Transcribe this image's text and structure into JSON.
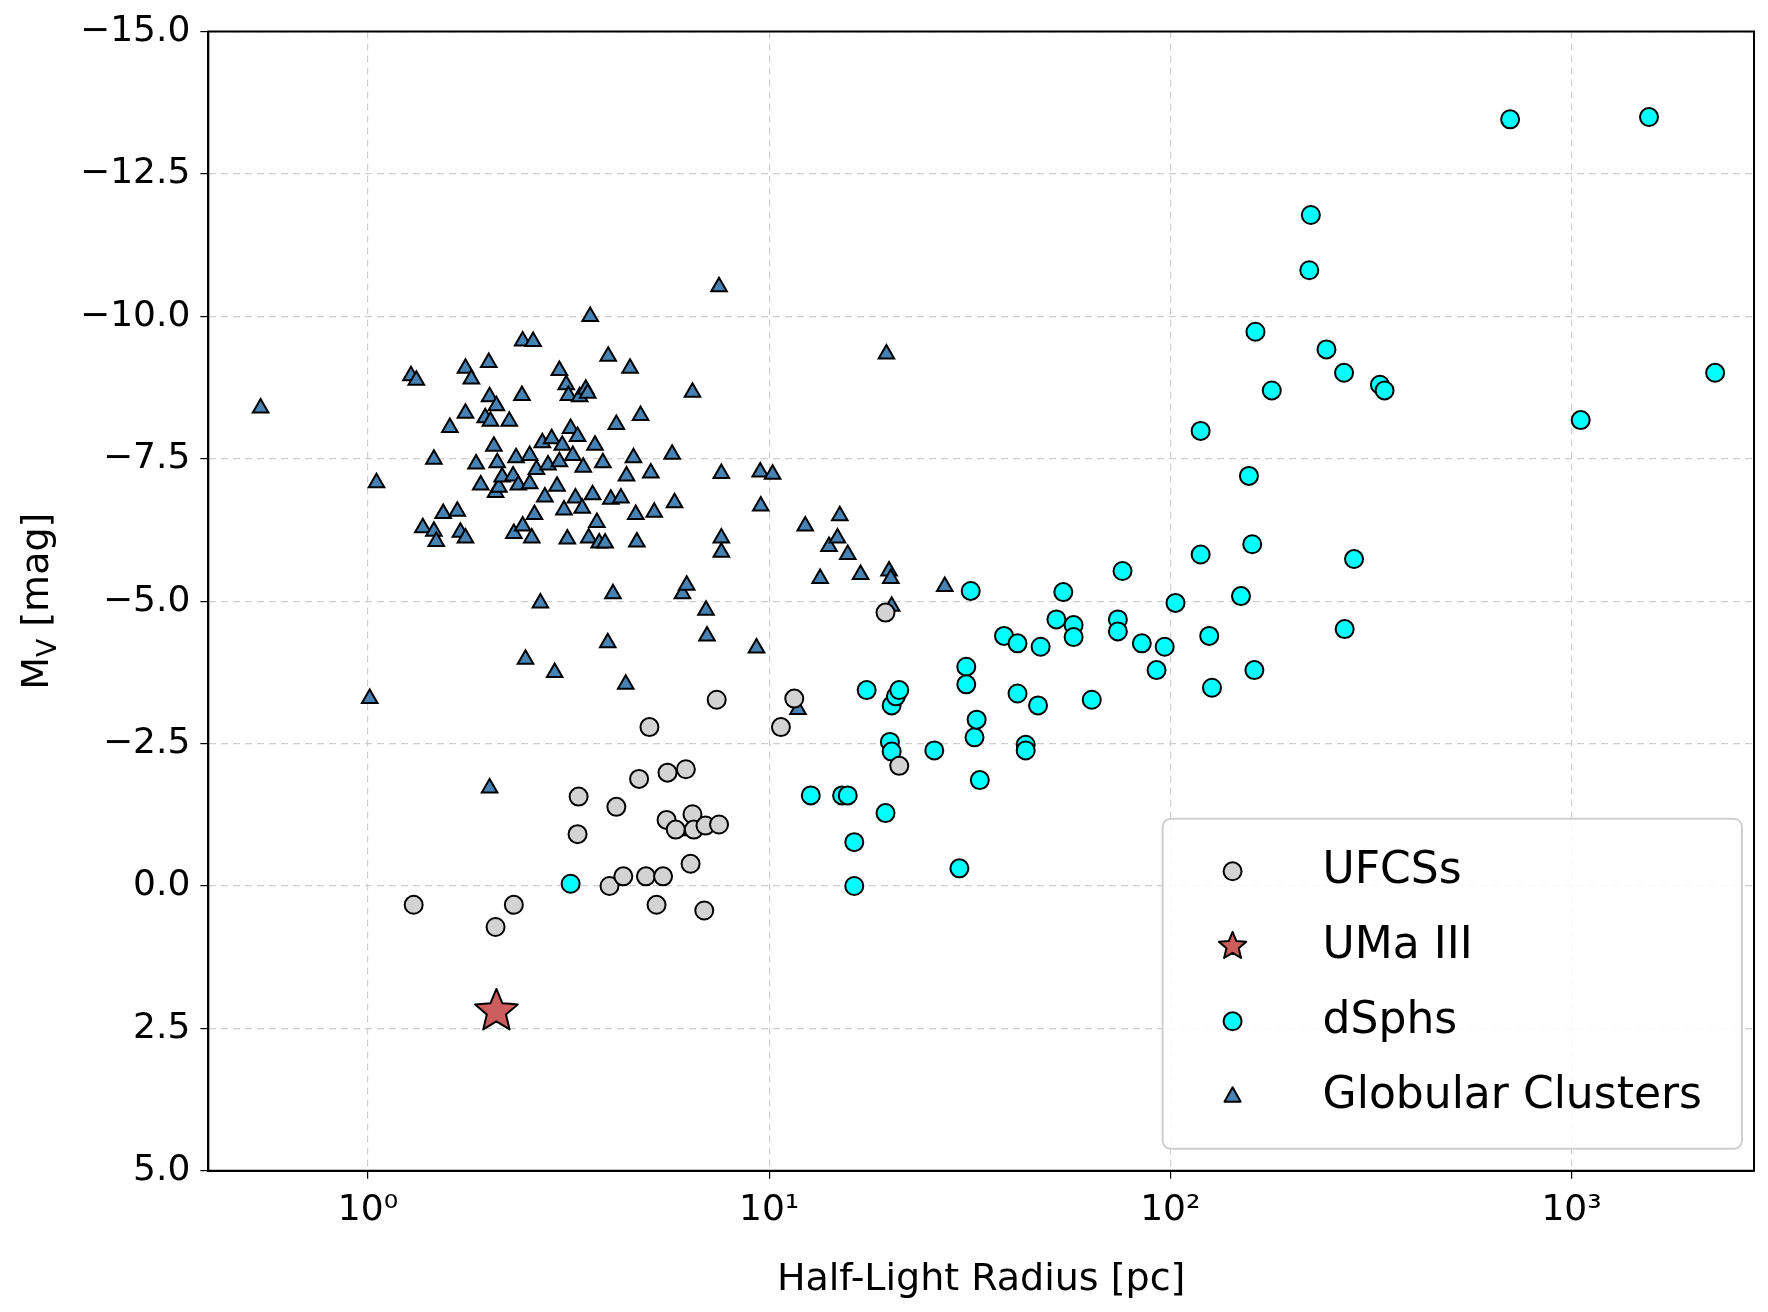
{
  "chart_data": {
    "type": "scatter",
    "xlabel": "Half-Light Radius [pc]",
    "ylabel": "M$_{V}$ [mag]",
    "log": "x",
    "grid": true,
    "legend": "bottom right",
    "xlim": [
      0.4,
      2850
    ],
    "xticks": [
      {
        "value": 1,
        "label": "10⁰"
      },
      {
        "value": 10,
        "label": "10¹"
      },
      {
        "value": 100,
        "label": "10²"
      },
      {
        "value": 1000,
        "label": "10³"
      }
    ],
    "ylim": [
      5,
      -15
    ],
    "yticks": [
      {
        "value": -15,
        "label": "−15.0"
      },
      {
        "value": -12.5,
        "label": "−12.5"
      },
      {
        "value": -10,
        "label": "−10.0"
      },
      {
        "value": -7.5,
        "label": "−7.5"
      },
      {
        "value": -5,
        "label": "−5.0"
      },
      {
        "value": -2.5,
        "label": "−2.5"
      },
      {
        "value": 0,
        "label": "0.0"
      },
      {
        "value": 2.5,
        "label": "2.5"
      },
      {
        "value": 5,
        "label": "5.0"
      }
    ],
    "series": [
      {
        "name": "UFCSs",
        "color": "#d3d3d3",
        "marker": "circle",
        "x": [
          1.3,
          2.08,
          2.31,
          3.35,
          3.33,
          4.16,
          4.0,
          4.33,
          4.74,
          5.03,
          4.93,
          5.24,
          5.44,
          5.58,
          5.55,
          5.85,
          6.2,
          6.37,
          6.44,
          6.49,
          6.89,
          6.94,
          7.5,
          7.4,
          10.7,
          11.55,
          19.5,
          21.1
        ],
        "values": [
          0.33,
          0.72,
          0.33,
          -1.57,
          -0.91,
          -1.39,
          0,
          -0.17,
          -1.88,
          -2.79,
          -0.17,
          0.33,
          -0.17,
          -1.99,
          -1.16,
          -0.99,
          -2.05,
          -0.39,
          -1.26,
          -0.99,
          0.43,
          -1.06,
          -1.08,
          -3.27,
          -2.79,
          -3.29,
          -4.8,
          -2.11
        ]
      },
      {
        "name": "UMa III",
        "color": "#cd5c5c",
        "marker": "star",
        "x": [
          2.09
        ],
        "values": [
          2.2
        ]
      },
      {
        "name": "dSphs",
        "color": "#00ffff",
        "marker": "circle",
        "x": [
          3.2,
          12.7,
          15.2,
          15.7,
          16.3,
          16.3,
          17.5,
          19.5,
          20.0,
          20.2,
          20.2,
          20.7,
          21.1,
          25.8,
          29.8,
          31.8,
          31.0,
          31.0,
          32.5,
          32.9,
          33.5,
          38.5,
          41.6,
          41.6,
          43.6,
          43.6,
          46.8,
          47.5,
          52.0,
          54.1,
          57.4,
          57.4,
          63.7,
          74.0,
          74.0,
          76.0,
          84.9,
          92.4,
          96.8,
          103,
          119,
          119,
          125,
          127,
          150,
          157,
          160,
          163,
          162,
          179,
          222,
          224,
          245,
          272,
          271,
          287,
          333,
          342,
          703,
          1054,
          1560,
          2280
        ],
        "values": [
          -0.04,
          -1.59,
          -1.59,
          -1.59,
          -0.77,
          0,
          -3.44,
          -1.28,
          -2.53,
          -2.36,
          -3.17,
          -3.33,
          -3.44,
          -2.38,
          -0.31,
          -5.18,
          -3.85,
          -3.54,
          -2.61,
          -2.92,
          -1.86,
          -4.39,
          -4.26,
          -3.38,
          -2.48,
          -2.38,
          -3.17,
          -4.2,
          -4.68,
          -5.16,
          -4.58,
          -4.37,
          -3.27,
          -4.68,
          -4.47,
          -5.53,
          -4.26,
          -3.79,
          -4.2,
          -4.97,
          -7.99,
          -5.82,
          -4.39,
          -3.48,
          -5.09,
          -7.2,
          -6.0,
          -9.73,
          -3.79,
          -8.7,
          -10.81,
          -11.78,
          -9.42,
          -4.51,
          -9.01,
          -5.74,
          -8.8,
          -8.7,
          -13.46,
          -8.18,
          -13.5,
          -9.01
        ]
      },
      {
        "name": "Globular Clusters",
        "color": "#4682b4",
        "marker": "triangle",
        "x": [
          0.54,
          1.01,
          1.05,
          1.28,
          1.32,
          1.37,
          1.46,
          1.46,
          1.48,
          1.54,
          1.6,
          1.67,
          1.7,
          1.75,
          1.75,
          1.75,
          1.81,
          1.86,
          1.91,
          1.96,
          2.0,
          2.01,
          2.01,
          2.02,
          2.06,
          2.08,
          2.09,
          2.1,
          2.12,
          2.16,
          2.25,
          2.3,
          2.31,
          2.34,
          2.37,
          2.42,
          2.43,
          2.43,
          2.47,
          2.53,
          2.53,
          2.56,
          2.58,
          2.6,
          2.63,
          2.69,
          2.72,
          2.76,
          2.81,
          2.87,
          2.92,
          2.96,
          3.0,
          3.0,
          3.05,
          3.08,
          3.12,
          3.14,
          3.16,
          3.2,
          3.24,
          3.29,
          3.33,
          3.37,
          3.42,
          3.44,
          3.49,
          3.53,
          3.55,
          3.58,
          3.63,
          3.68,
          3.72,
          3.77,
          3.85,
          3.9,
          3.96,
          3.97,
          4.03,
          4.08,
          4.16,
          4.27,
          4.39,
          4.41,
          4.5,
          4.59,
          4.65,
          4.68,
          4.78,
          5.07,
          5.17,
          5.73,
          5.81,
          6.08,
          6.23,
          6.44,
          6.96,
          7.0,
          7.5,
          7.6,
          7.6,
          7.6,
          9.3,
          9.5,
          9.53,
          10.2,
          12.3,
          13.4,
          14.1,
          14.8,
          15.0,
          15.7,
          16.9,
          19.6,
          19.9,
          20.2,
          20.1,
          27.4,
          11.8,
          6.4
        ],
        "values": [
          -8.39,
          -3.29,
          -7.08,
          -8.96,
          -8.88,
          -6.29,
          -7.49,
          -6.23,
          -6.05,
          -6.54,
          -8.05,
          -6.58,
          -6.21,
          -9.09,
          -6.11,
          -8.3,
          -8.9,
          -7.41,
          -7.04,
          -8.22,
          -9.19,
          -1.72,
          -8.59,
          -8.16,
          -7.72,
          -6.91,
          -8.43,
          -7.43,
          -7.0,
          -7.18,
          -8.16,
          -7.2,
          -6.19,
          -7.52,
          -7.04,
          -8.61,
          -9.57,
          -6.32,
          -3.98,
          -7.06,
          -7.56,
          -6.11,
          -9.56,
          -6.52,
          -7.31,
          -4.97,
          -7.78,
          -6.83,
          -7.39,
          -7.85,
          -3.75,
          -7.02,
          -9.05,
          -7.45,
          -7.74,
          -6.6,
          -8.8,
          -6.09,
          -8.61,
          -8.03,
          -7.56,
          -6.81,
          -7.89,
          -8.59,
          -6.63,
          -7.35,
          -8.72,
          -8.65,
          -6.11,
          -10.0,
          -6.87,
          -7.74,
          -6.38,
          -6.02,
          -7.43,
          -6.02,
          -4.27,
          -9.3,
          -6.79,
          -5.13,
          -8.1,
          -6.81,
          -3.54,
          -7.2,
          -9.09,
          -7.52,
          -6.52,
          -6.04,
          -8.26,
          -7.25,
          -6.56,
          -7.58,
          -6.73,
          -5.13,
          -5.28,
          -8.67,
          -4.84,
          -4.39,
          -10.52,
          -7.24,
          -6.11,
          -5.86,
          -4.18,
          -7.27,
          -6.67,
          -7.23,
          -6.32,
          -5.4,
          -5.96,
          -6.11,
          -6.5,
          -5.82,
          -5.47,
          -9.34,
          -5.53,
          -4.91,
          -5.4,
          -5.26,
          -3.1,
          -0.97
        ]
      }
    ]
  }
}
